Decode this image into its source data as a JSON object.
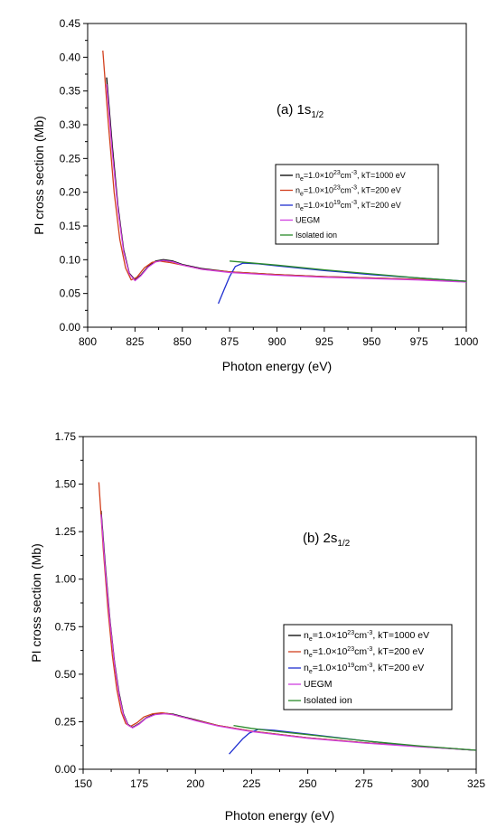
{
  "chart_data": [
    {
      "type": "line",
      "panel_label": "(a) 1s1/2",
      "panel_label_main": "(a) 1s",
      "panel_label_sub": "1/2",
      "xlabel": "Photon energy (eV)",
      "ylabel": "PI cross section (Mb)",
      "xlim": [
        800,
        1000
      ],
      "ylim": [
        0,
        0.45
      ],
      "xticks": [
        "800",
        "825",
        "850",
        "875",
        "900",
        "925",
        "950",
        "975",
        "1000"
      ],
      "yticks": [
        "0.00",
        "0.05",
        "0.10",
        "0.15",
        "0.20",
        "0.25",
        "0.30",
        "0.35",
        "0.40",
        "0.45"
      ],
      "legend_position": "right",
      "series": [
        {
          "name": "ne=1.0×10^23cm^-3, kT=1000 eV",
          "legend": {
            "pre": "n",
            "sub": "e",
            "mid": "=1.0×10",
            "sup": "23",
            "post": "cm",
            "sup2": "-3",
            "tail": ", kT=1000 eV"
          },
          "color": "#000000",
          "x": [
            810,
            813,
            816,
            819,
            822,
            825,
            828,
            832,
            836,
            840,
            845,
            850,
            860,
            875,
            900,
            925,
            950,
            975,
            1000
          ],
          "y": [
            0.37,
            0.27,
            0.18,
            0.115,
            0.08,
            0.07,
            0.077,
            0.09,
            0.098,
            0.1,
            0.098,
            0.093,
            0.087,
            0.082,
            0.078,
            0.075,
            0.073,
            0.071,
            0.068
          ]
        },
        {
          "name": "ne=1.0×10^23cm^-3, kT=200 eV",
          "legend": {
            "pre": "n",
            "sub": "e",
            "mid": "=1.0×10",
            "sup": "23",
            "post": "cm",
            "sup2": "-3",
            "tail": ", kT=200 eV"
          },
          "color": "#d2401e",
          "x": [
            808,
            811,
            814,
            817,
            820,
            823,
            826,
            830,
            834,
            838,
            843,
            850,
            860,
            875,
            900,
            925,
            950,
            975,
            1000
          ],
          "y": [
            0.41,
            0.3,
            0.2,
            0.13,
            0.088,
            0.07,
            0.074,
            0.088,
            0.096,
            0.098,
            0.096,
            0.092,
            0.086,
            0.082,
            0.078,
            0.075,
            0.073,
            0.071,
            0.068
          ]
        },
        {
          "name": "ne=1.0×10^19cm^-3, kT=200 eV",
          "legend": {
            "pre": "n",
            "sub": "e",
            "mid": "=1.0×10",
            "sup": "19",
            "post": "cm",
            "sup2": "-3",
            "tail": ", kT=200 eV"
          },
          "color": "#1f2fd0",
          "x": [
            869,
            872,
            875,
            878,
            882,
            890,
            900,
            925,
            950,
            975,
            1000
          ],
          "y": [
            0.035,
            0.055,
            0.075,
            0.09,
            0.095,
            0.094,
            0.091,
            0.084,
            0.078,
            0.073,
            0.068
          ]
        },
        {
          "name": "UEGM",
          "legend": {
            "pre": "UEGM"
          },
          "color": "#d040e0",
          "x": [
            810,
            813,
            816,
            819,
            822,
            825,
            828,
            832,
            836,
            840,
            845,
            850,
            860,
            875,
            900,
            925,
            950,
            975,
            1000
          ],
          "y": [
            0.36,
            0.26,
            0.175,
            0.112,
            0.079,
            0.069,
            0.076,
            0.089,
            0.097,
            0.099,
            0.097,
            0.092,
            0.086,
            0.081,
            0.077,
            0.074,
            0.072,
            0.07,
            0.067
          ]
        },
        {
          "name": "Isolated ion",
          "legend": {
            "pre": "Isolated ion"
          },
          "color": "#2a8a2a",
          "x": [
            875,
            900,
            925,
            950,
            975,
            1000
          ],
          "y": [
            0.098,
            0.092,
            0.085,
            0.079,
            0.073,
            0.068
          ]
        }
      ]
    },
    {
      "type": "line",
      "panel_label": "(b) 2s1/2",
      "panel_label_main": "(b) 2s",
      "panel_label_sub": "1/2",
      "xlabel": "Photon energy (eV)",
      "ylabel": "PI cross section (Mb)",
      "xlim": [
        150,
        325
      ],
      "ylim": [
        0,
        1.75
      ],
      "xticks": [
        "150",
        "175",
        "200",
        "225",
        "250",
        "275",
        "300",
        "325"
      ],
      "yticks": [
        "0.00",
        "0.25",
        "0.50",
        "0.75",
        "1.00",
        "1.25",
        "1.50",
        "1.75"
      ],
      "legend_position": "right",
      "series": [
        {
          "name": "ne=1.0×10^23cm^-3, kT=1000 eV",
          "legend": {
            "pre": "n",
            "sub": "e",
            "mid": "=1.0×10",
            "sup": "23",
            "post": "cm",
            "sup2": "-3",
            "tail": ", kT=1000 eV"
          },
          "color": "#000000",
          "x": [
            158,
            160,
            162,
            164,
            166,
            168,
            170,
            172,
            175,
            178,
            182,
            186,
            190,
            195,
            200,
            210,
            225,
            250,
            275,
            300,
            325
          ],
          "y": [
            1.36,
            1.05,
            0.78,
            0.56,
            0.4,
            0.29,
            0.235,
            0.22,
            0.24,
            0.27,
            0.29,
            0.295,
            0.29,
            0.275,
            0.26,
            0.23,
            0.2,
            0.165,
            0.14,
            0.12,
            0.1
          ]
        },
        {
          "name": "ne=1.0×10^23cm^-3, kT=200 eV",
          "legend": {
            "pre": "n",
            "sub": "e",
            "mid": "=1.0×10",
            "sup": "23",
            "post": "cm",
            "sup2": "-3",
            "tail": ", kT=200 eV"
          },
          "color": "#d2401e",
          "x": [
            157,
            159,
            161,
            163,
            165,
            167,
            169,
            171,
            174,
            177,
            181,
            185,
            189,
            194,
            200,
            210,
            225,
            250,
            275,
            300,
            325
          ],
          "y": [
            1.51,
            1.15,
            0.85,
            0.6,
            0.42,
            0.3,
            0.24,
            0.225,
            0.245,
            0.275,
            0.292,
            0.297,
            0.29,
            0.275,
            0.258,
            0.23,
            0.2,
            0.165,
            0.14,
            0.12,
            0.1
          ]
        },
        {
          "name": "ne=1.0×10^19cm^-3, kT=200 eV",
          "legend": {
            "pre": "n",
            "sub": "e",
            "mid": "=1.0×10",
            "sup": "19",
            "post": "cm",
            "sup2": "-3",
            "tail": ", kT=200 eV"
          },
          "color": "#1f2fd0",
          "x": [
            215,
            218,
            221,
            224,
            228,
            235,
            250,
            275,
            300,
            325
          ],
          "y": [
            0.08,
            0.12,
            0.16,
            0.19,
            0.21,
            0.205,
            0.185,
            0.15,
            0.12,
            0.1
          ]
        },
        {
          "name": "UEGM",
          "legend": {
            "pre": "UEGM"
          },
          "color": "#d040e0",
          "x": [
            158,
            160,
            162,
            164,
            166,
            168,
            170,
            172,
            175,
            178,
            182,
            186,
            190,
            195,
            200,
            210,
            225,
            250,
            275,
            300,
            325
          ],
          "y": [
            1.34,
            1.03,
            0.77,
            0.55,
            0.39,
            0.285,
            0.232,
            0.218,
            0.238,
            0.268,
            0.287,
            0.292,
            0.287,
            0.272,
            0.256,
            0.228,
            0.198,
            0.163,
            0.138,
            0.118,
            0.1
          ]
        },
        {
          "name": "Isolated ion",
          "legend": {
            "pre": "Isolated ion"
          },
          "color": "#2a8a2a",
          "x": [
            217,
            225,
            235,
            250,
            275,
            300,
            325
          ],
          "y": [
            0.23,
            0.215,
            0.2,
            0.182,
            0.15,
            0.122,
            0.1
          ]
        }
      ]
    }
  ]
}
